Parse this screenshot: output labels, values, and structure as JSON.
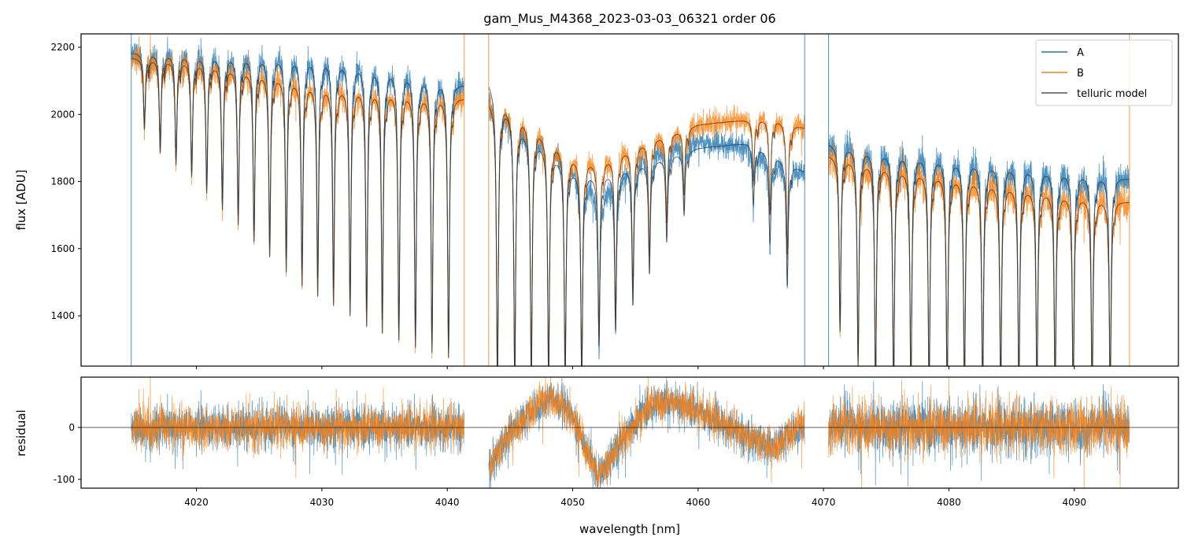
{
  "chart_data": {
    "type": "line",
    "title": "gam_Mus_M4368_2023-03-03_06321  order 06",
    "xlabel": "wavelength [nm]",
    "xlim": [
      4010.8,
      4098.3
    ],
    "xticks": [
      4020,
      4030,
      4040,
      4050,
      4060,
      4070,
      4080,
      4090
    ],
    "panels": [
      {
        "name": "flux",
        "ylabel": "flux [ADU]",
        "ylim": [
          1250,
          2240
        ],
        "yticks": [
          1400,
          1600,
          1800,
          2000,
          2200
        ]
      },
      {
        "name": "residual",
        "ylabel": "residual",
        "ylim": [
          -117,
          97
        ],
        "yticks": [
          -100,
          0
        ]
      }
    ],
    "legend": {
      "placement": "top-right",
      "entries": [
        "A",
        "B",
        "telluric model"
      ]
    },
    "colors": {
      "A": "#1f77b4",
      "B": "#ff7f0e",
      "telluric model": "#333333"
    },
    "segments": [
      {
        "range": [
          4014.8,
          4041.35
        ],
        "continuum_A": [
          [
            4014.8,
            2185
          ],
          [
            4020,
            2180
          ],
          [
            4030,
            2172
          ],
          [
            4036,
            2135
          ],
          [
            4041.35,
            2090
          ]
        ],
        "continuum_B": [
          [
            4014.8,
            2170
          ],
          [
            4020,
            2160
          ],
          [
            4025,
            2130
          ],
          [
            4030,
            2090
          ],
          [
            4036,
            2075
          ],
          [
            4041.35,
            2050
          ]
        ],
        "lines_nm": [
          4015.85,
          4017.11,
          4018.37,
          4019.62,
          4020.82,
          4022.07,
          4023.33,
          4024.59,
          4025.84,
          4027.16,
          4028.42,
          4029.67,
          4030.93,
          4032.25,
          4033.57,
          4034.82,
          4036.14,
          4037.46,
          4038.78,
          4040.1
        ],
        "line_min_flux": [
          1973,
          1905,
          1870,
          1835,
          1790,
          1745,
          1705,
          1660,
          1620,
          1580,
          1545,
          1520,
          1490,
          1455,
          1420,
          1395,
          1370,
          1345,
          1325,
          1305
        ],
        "residual_trend": [
          [
            4014.8,
            0
          ],
          [
            4041.35,
            0
          ]
        ],
        "noise": 40
      },
      {
        "range": [
          4043.3,
          4068.5
        ],
        "continuum_A": [
          [
            4043.3,
            2100
          ],
          [
            4046,
            1960
          ],
          [
            4050,
            1840
          ],
          [
            4052,
            1820
          ],
          [
            4056,
            1860
          ],
          [
            4060,
            1900
          ],
          [
            4064,
            1915
          ],
          [
            4066,
            1880
          ],
          [
            4068.5,
            1830
          ]
        ],
        "continuum_B": [
          [
            4043.3,
            2040
          ],
          [
            4046,
            1995
          ],
          [
            4050,
            1880
          ],
          [
            4052,
            1860
          ],
          [
            4056,
            1925
          ],
          [
            4060,
            1970
          ],
          [
            4064,
            1985
          ],
          [
            4066,
            1990
          ],
          [
            4068.5,
            1960
          ]
        ],
        "lines_nm": [
          4044.0,
          4045.38,
          4046.7,
          4048.08,
          4049.4,
          4050.72,
          4052.1,
          4053.42,
          4054.8,
          4056.12,
          4057.5,
          4058.88,
          4064.41,
          4065.73,
          4067.11
        ],
        "line_min_flux": [
          1200,
          1200,
          1200,
          1200,
          1200,
          1200,
          1314,
          1358,
          1435,
          1528,
          1622,
          1700,
          1732,
          1615,
          1490
        ],
        "residual_trend": [
          [
            4043.3,
            -80
          ],
          [
            4045,
            -10
          ],
          [
            4048,
            60
          ],
          [
            4050,
            20
          ],
          [
            4052,
            -95
          ],
          [
            4053.5,
            -40
          ],
          [
            4056,
            40
          ],
          [
            4058,
            50
          ],
          [
            4061,
            20
          ],
          [
            4064,
            -20
          ],
          [
            4066,
            -40
          ],
          [
            4068.5,
            10
          ]
        ],
        "noise": 35
      },
      {
        "range": [
          4070.4,
          4094.4
        ],
        "continuum_A": [
          [
            4070.4,
            1915
          ],
          [
            4080,
            1870
          ],
          [
            4090,
            1830
          ],
          [
            4094.4,
            1810
          ]
        ],
        "continuum_B": [
          [
            4070.4,
            1880
          ],
          [
            4080,
            1820
          ],
          [
            4090,
            1760
          ],
          [
            4094.4,
            1740
          ]
        ],
        "lines_nm": [
          4071.32,
          4072.76,
          4074.15,
          4075.59,
          4076.97,
          4078.42,
          4079.86,
          4081.24,
          4082.69,
          4084.13,
          4085.58,
          4087.02,
          4088.47,
          4089.91,
          4091.42,
          4092.86
        ],
        "line_min_flux": [
          1381,
          1281,
          1200,
          1200,
          1200,
          1200,
          1200,
          1200,
          1200,
          1200,
          1200,
          1200,
          1200,
          1200,
          1200,
          1200
        ],
        "residual_trend": [
          [
            4070.4,
            0
          ],
          [
            4094.4,
            0
          ]
        ],
        "noise": 50
      }
    ]
  }
}
